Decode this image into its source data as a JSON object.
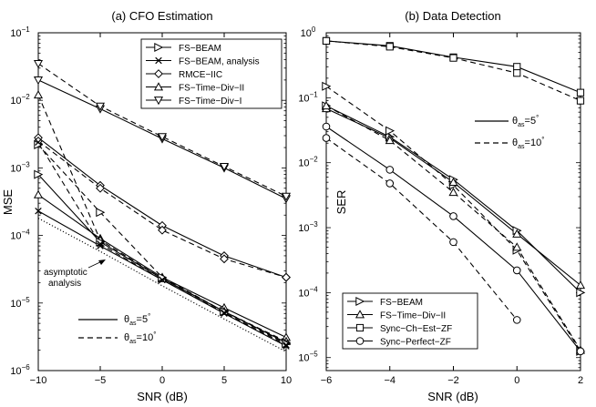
{
  "chart_data": [
    {
      "type": "line",
      "title": "(a)  CFO Estimation",
      "xlabel": "SNR (dB)",
      "ylabel": "MSE",
      "x": [
        -10,
        -5,
        0,
        5,
        10
      ],
      "xlim": [
        -10,
        10
      ],
      "ylim_log10": [
        -6,
        -1
      ],
      "xticks": [
        -10,
        -5,
        0,
        5,
        10
      ],
      "xtick_labels": [
        "−10",
        "−5",
        "0",
        "5",
        "10"
      ],
      "ytick_exponents": [
        -6,
        -5,
        -4,
        -3,
        -2,
        -1
      ],
      "ytick_base": "10",
      "legend_position": "top-right",
      "legend": [
        {
          "label": "FS−BEAM",
          "marker": "triangle-right"
        },
        {
          "label": "FS−BEAM, analysis",
          "marker": "x"
        },
        {
          "label": "RMCE−IIC",
          "marker": "diamond"
        },
        {
          "label": "FS−Time−Div−II",
          "marker": "triangle-up"
        },
        {
          "label": "FS−Time−Div−I",
          "marker": "triangle-down"
        }
      ],
      "line_key": [
        {
          "label": "θ",
          "sub": "as",
          "eq": "=5",
          "sup": "°",
          "style": "solid"
        },
        {
          "label": "θ",
          "sub": "as",
          "eq": "=10",
          "sup": "°",
          "style": "dashed"
        }
      ],
      "annotation": {
        "lines": [
          "asymptotic",
          "analysis"
        ],
        "points_to": "asymptotic analysis (dotted)"
      },
      "series": [
        {
          "name": "FS−Time−Div−I",
          "theta": 5,
          "style": "solid",
          "marker": "triangle-down",
          "values": [
            0.02,
            0.0075,
            0.0027,
            0.001,
            0.00035
          ]
        },
        {
          "name": "FS−Time−Div−I",
          "theta": 10,
          "style": "dashed",
          "marker": "triangle-down",
          "values": [
            0.035,
            0.0082,
            0.0029,
            0.00105,
            0.00038
          ]
        },
        {
          "name": "RMCE−IIC",
          "theta": 5,
          "style": "solid",
          "marker": "diamond",
          "values": [
            0.0028,
            0.00055,
            0.00014,
            5e-05,
            2.4e-05
          ]
        },
        {
          "name": "RMCE−IIC",
          "theta": 10,
          "style": "dashed",
          "marker": "diamond",
          "values": [
            0.0025,
            0.0005,
            0.00012,
            4.5e-05,
            2.4e-05
          ]
        },
        {
          "name": "FS−Time−Div−II",
          "theta": 5,
          "style": "solid",
          "marker": "triangle-up",
          "values": [
            0.0004,
            9e-05,
            2.4e-05,
            8.5e-06,
            3.1e-06
          ]
        },
        {
          "name": "FS−Time−Div−II",
          "theta": 10,
          "style": "dashed",
          "marker": "triangle-up",
          "values": [
            0.012,
            8.5e-05,
            2.3e-05,
            7.5e-06,
            2.7e-06
          ]
        },
        {
          "name": "FS−BEAM",
          "theta": 5,
          "style": "solid",
          "marker": "triangle-right",
          "values": [
            0.0008,
            8e-05,
            2.3e-05,
            7.5e-06,
            2.6e-06
          ]
        },
        {
          "name": "FS−BEAM",
          "theta": 10,
          "style": "dashed",
          "marker": "triangle-right",
          "values": [
            0.0022,
            0.00022,
            2.4e-05,
            7.5e-06,
            2.5e-06
          ]
        },
        {
          "name": "FS−BEAM, analysis",
          "theta": 5,
          "style": "solid",
          "marker": "x",
          "values": [
            0.00023,
            7e-05,
            2.2e-05,
            7e-06,
            2.3e-06
          ]
        },
        {
          "name": "FS−BEAM, analysis",
          "theta": 10,
          "style": "dashed",
          "marker": "x",
          "values": [
            0.0024,
            7.5e-05,
            2.2e-05,
            7.2e-06,
            2.4e-06
          ]
        },
        {
          "name": "asymptotic analysis",
          "theta": null,
          "style": "dotted",
          "marker": "none",
          "values": [
            0.00018,
            5.8e-05,
            1.8e-05,
            5.8e-06,
            1.9e-06
          ]
        }
      ]
    },
    {
      "type": "line",
      "title": "(b)  Data Detection",
      "xlabel": "SNR (dB)",
      "ylabel": "SER",
      "x": [
        -6,
        -4,
        -2,
        0,
        2
      ],
      "xlim": [
        -6,
        2
      ],
      "ylim_log10": [
        -5.2,
        0
      ],
      "xticks": [
        -6,
        -4,
        -2,
        0,
        2
      ],
      "xtick_labels": [
        "−6",
        "−4",
        "−2",
        "0",
        "2"
      ],
      "ytick_exponents": [
        -5,
        -4,
        -3,
        -2,
        -1,
        0
      ],
      "ytick_base": "10",
      "legend_position": "bottom-left",
      "legend": [
        {
          "label": "FS−BEAM",
          "marker": "triangle-right"
        },
        {
          "label": "FS−Time−Div−II",
          "marker": "triangle-up"
        },
        {
          "label": "Sync−Ch−Est−ZF",
          "marker": "square"
        },
        {
          "label": "Sync−Perfect−ZF",
          "marker": "circle"
        }
      ],
      "line_key": [
        {
          "label": "θ",
          "sub": "as",
          "eq": "=5",
          "sup": "°",
          "style": "solid"
        },
        {
          "label": "θ",
          "sub": "as",
          "eq": "=10",
          "sup": "°",
          "style": "dashed"
        }
      ],
      "series": [
        {
          "name": "Sync−Ch−Est−ZF",
          "theta": 5,
          "style": "solid",
          "marker": "square",
          "values": [
            0.75,
            0.63,
            0.42,
            0.3,
            0.12
          ]
        },
        {
          "name": "Sync−Ch−Est−ZF",
          "theta": 10,
          "style": "dashed",
          "marker": "square",
          "values": [
            0.75,
            0.61,
            0.41,
            0.24,
            0.09
          ]
        },
        {
          "name": "FS−BEAM",
          "theta": 5,
          "style": "solid",
          "marker": "triangle-right",
          "values": [
            0.075,
            0.025,
            0.0055,
            0.0009,
            0.0001
          ]
        },
        {
          "name": "FS−BEAM",
          "theta": 10,
          "style": "dashed",
          "marker": "triangle-right",
          "values": [
            0.15,
            0.031,
            0.0045,
            0.00045,
            1.25e-05
          ]
        },
        {
          "name": "FS−Time−Div−II",
          "theta": 5,
          "style": "solid",
          "marker": "triangle-up",
          "values": [
            0.068,
            0.024,
            0.005,
            0.0008,
            0.00013
          ]
        },
        {
          "name": "FS−Time−Div−II",
          "theta": 10,
          "style": "dashed",
          "marker": "triangle-up",
          "values": [
            0.075,
            0.022,
            0.0035,
            0.0005,
            1.3e-05
          ]
        },
        {
          "name": "Sync−Perfect−ZF",
          "theta": 5,
          "style": "solid",
          "marker": "circle",
          "values": [
            0.036,
            0.0078,
            0.0015,
            0.00022,
            1.25e-05
          ]
        },
        {
          "name": "Sync−Perfect−ZF",
          "theta": 10,
          "style": "dashed",
          "marker": "circle",
          "values": [
            0.024,
            0.0048,
            0.0006,
            3.8e-05,
            null
          ]
        }
      ]
    }
  ]
}
